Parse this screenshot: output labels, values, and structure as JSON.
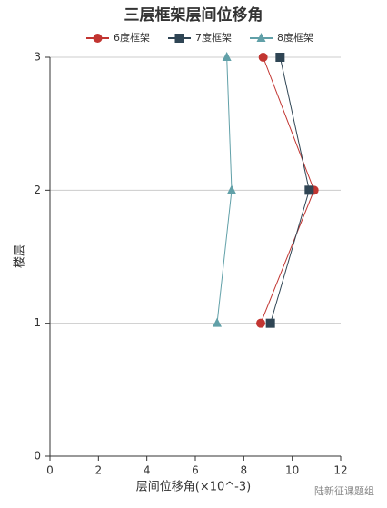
{
  "chart_data": {
    "type": "line",
    "title": "三层框架层间位移角",
    "x_label": "层间位移角(×10^-3)",
    "y_label": "楼层",
    "xlim": [
      0,
      12
    ],
    "xticks": [
      0,
      2,
      4,
      6,
      8,
      10,
      12
    ],
    "ylim": [
      0,
      3
    ],
    "yticks": [
      0,
      1,
      2,
      3
    ],
    "grid": true,
    "legend": "top",
    "series": [
      {
        "name": "6度框架",
        "color": "#c23531",
        "marker": "circle",
        "x": [
          8.7,
          10.9,
          8.8
        ],
        "y": [
          1,
          2,
          3
        ]
      },
      {
        "name": "7度框架",
        "color": "#2f4554",
        "marker": "square",
        "x": [
          9.1,
          10.7,
          9.5
        ],
        "y": [
          1,
          2,
          3
        ]
      },
      {
        "name": "8度框架",
        "color": "#61a0a8",
        "marker": "triangle",
        "x": [
          6.9,
          7.5,
          7.3
        ],
        "y": [
          1,
          2,
          3
        ]
      }
    ],
    "watermark": "陆新征课题组"
  }
}
